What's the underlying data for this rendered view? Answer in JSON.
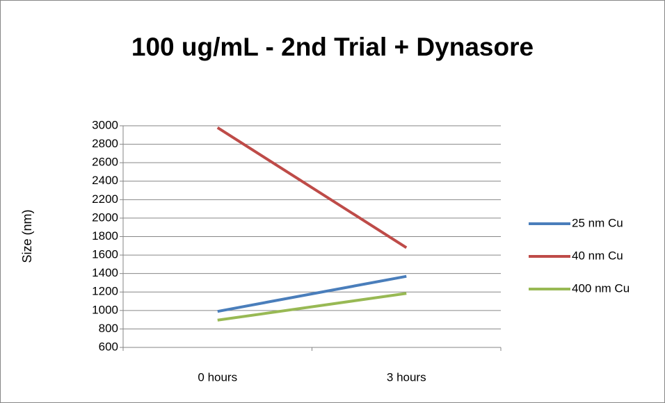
{
  "chart_data": {
    "type": "line",
    "title": "100 ug/mL - 2nd Trial + Dynasore",
    "y_label": "Size (nm)",
    "categories": [
      "0 hours",
      "3 hours"
    ],
    "series": [
      {
        "name": "25 nm Cu",
        "color": "#4a7ebb",
        "values": [
          990,
          1370
        ]
      },
      {
        "name": "40 nm Cu",
        "color": "#be4b48",
        "values": [
          2980,
          1680
        ]
      },
      {
        "name": "400 nm Cu",
        "color": "#98b954",
        "values": [
          895,
          1185
        ]
      }
    ],
    "ylim": [
      600,
      3000
    ],
    "yticks": [
      600,
      800,
      1000,
      1200,
      1400,
      1600,
      1800,
      2000,
      2200,
      2400,
      2600,
      2800,
      3000
    ],
    "grid": true,
    "legend": "right"
  }
}
